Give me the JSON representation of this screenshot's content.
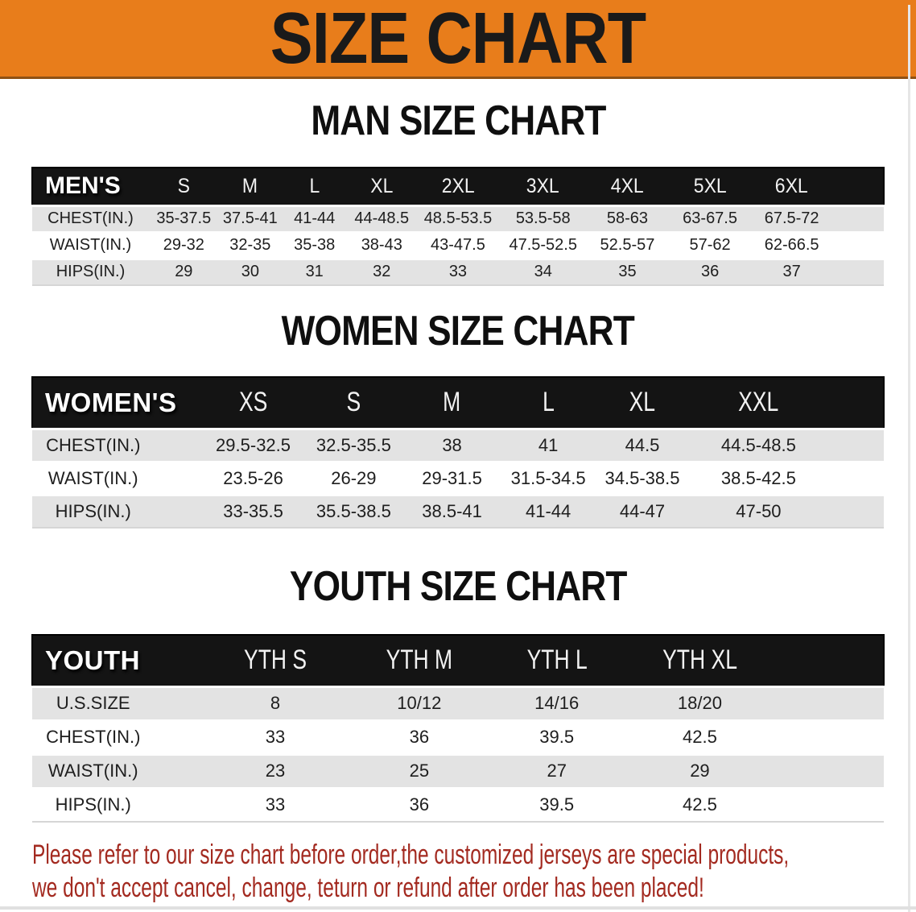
{
  "banner": {
    "title": "SIZE CHART"
  },
  "colors": {
    "banner_orange": "#E87D1B",
    "header_black": "#141414",
    "row_gray": "#E3E3E3",
    "text_dark": "#1E1E1E",
    "note_red": "#A32A20"
  },
  "sections": [
    {
      "id": "men",
      "title": "MAN SIZE CHART",
      "header_label": "MEN'S",
      "columns": [
        "S",
        "M",
        "L",
        "XL",
        "2XL",
        "3XL",
        "4XL",
        "5XL",
        "6XL"
      ],
      "rows": [
        {
          "label": "CHEST(IN.)",
          "values": [
            "35-37.5",
            "37.5-41",
            "41-44",
            "44-48.5",
            "48.5-53.5",
            "53.5-58",
            "58-63",
            "63-67.5",
            "67.5-72"
          ]
        },
        {
          "label": "WAIST(IN.)",
          "values": [
            "29-32",
            "32-35",
            "35-38",
            "38-43",
            "43-47.5",
            "47.5-52.5",
            "52.5-57",
            "57-62",
            "62-66.5"
          ]
        },
        {
          "label": "HIPS(IN.)",
          "values": [
            "29",
            "30",
            "31",
            "32",
            "33",
            "34",
            "35",
            "36",
            "37"
          ]
        }
      ]
    },
    {
      "id": "women",
      "title": "WOMEN SIZE CHART",
      "header_label": "WOMEN'S",
      "columns": [
        "XS",
        "S",
        "M",
        "L",
        "XL",
        "XXL"
      ],
      "rows": [
        {
          "label": "CHEST(IN.)",
          "values": [
            "29.5-32.5",
            "32.5-35.5",
            "38",
            "41",
            "44.5",
            "44.5-48.5"
          ]
        },
        {
          "label": "WAIST(IN.)",
          "values": [
            "23.5-26",
            "26-29",
            "29-31.5",
            "31.5-34.5",
            "34.5-38.5",
            "38.5-42.5"
          ]
        },
        {
          "label": "HIPS(IN.)",
          "values": [
            "33-35.5",
            "35.5-38.5",
            "38.5-41",
            "41-44",
            "44-47",
            "47-50"
          ]
        }
      ]
    },
    {
      "id": "youth",
      "title": "YOUTH SIZE CHART",
      "header_label": "YOUTH",
      "columns": [
        "YTH S",
        "YTH M",
        "YTH L",
        "YTH XL"
      ],
      "rows": [
        {
          "label": "U.S.SIZE",
          "values": [
            "8",
            "10/12",
            "14/16",
            "18/20"
          ]
        },
        {
          "label": "CHEST(IN.)",
          "values": [
            "33",
            "36",
            "39.5",
            "42.5"
          ]
        },
        {
          "label": "WAIST(IN.)",
          "values": [
            "23",
            "25",
            "27",
            "29"
          ]
        },
        {
          "label": "HIPS(IN.)",
          "values": [
            "33",
            "36",
            "39.5",
            "42.5"
          ]
        }
      ]
    }
  ],
  "footer": {
    "lines": [
      "Please refer to our size chart before order,the customized jerseys are special products,",
      "we don't accept cancel, change, teturn or refund after order has been placed!"
    ]
  }
}
